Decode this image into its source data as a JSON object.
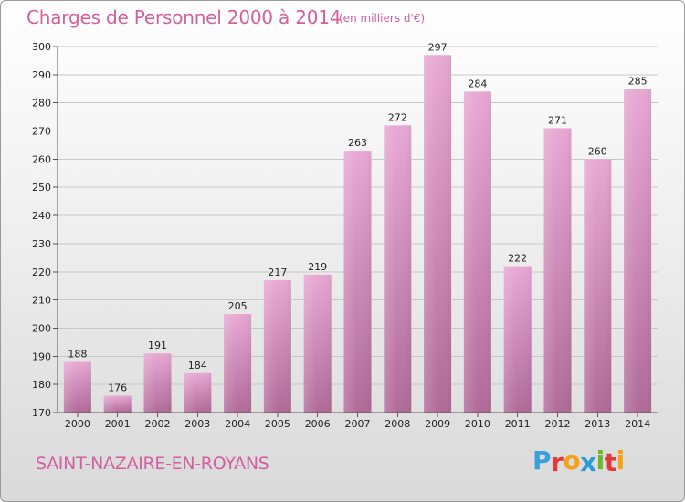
{
  "title": "Charges de Personnel 2000 à 2014",
  "unit_note": "(en milliers d'€)",
  "place": "SAINT-NAZAIRE-EN-ROYANS",
  "brand": "Proxiti",
  "colors": {
    "title": "#d2609f",
    "bar_top": "#e8a8d3",
    "bar_bottom": "#b06b98",
    "logo_letters": [
      "#3aa0dd",
      "#e23a3a",
      "#f3a21a",
      "#2a9ad6",
      "#6bb82a",
      "#e23a3a",
      "#f3a21a"
    ]
  },
  "chart_data": {
    "type": "bar",
    "categories": [
      "2000",
      "2001",
      "2002",
      "2003",
      "2004",
      "2005",
      "2006",
      "2007",
      "2008",
      "2009",
      "2010",
      "2011",
      "2012",
      "2013",
      "2014"
    ],
    "values": [
      188,
      176,
      191,
      184,
      205,
      217,
      219,
      263,
      272,
      297,
      284,
      222,
      271,
      260,
      285
    ],
    "ylim": [
      170,
      300
    ],
    "yticks": [
      170,
      180,
      190,
      200,
      210,
      220,
      230,
      240,
      250,
      260,
      270,
      280,
      290,
      300
    ],
    "grid": true,
    "legend": "none"
  }
}
